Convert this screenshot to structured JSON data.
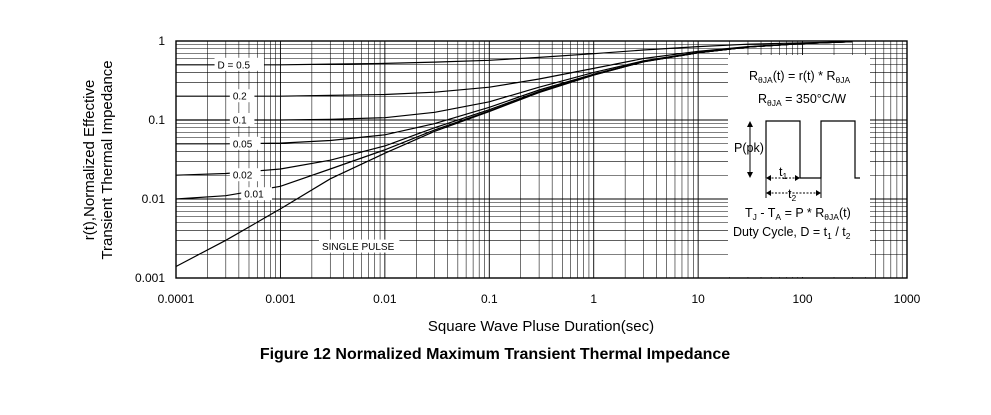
{
  "figure_caption": "Figure 12 Normalized Maximum Transient Thermal Impedance",
  "chart_data": {
    "type": "line",
    "xscale": "log",
    "yscale": "log",
    "xlim": [
      0.0001,
      1000
    ],
    "ylim": [
      0.001,
      1
    ],
    "grid": true,
    "xlabel": "Square Wave Pluse Duration(sec)",
    "ylabel_line1": "r(t),Normalized Effective",
    "ylabel_line2": "Transient Thermal Impedance",
    "x_ticks": [
      {
        "value": 0.0001,
        "label": "0.0001"
      },
      {
        "value": 0.001,
        "label": "0.001"
      },
      {
        "value": 0.01,
        "label": "0.01"
      },
      {
        "value": 0.1,
        "label": "0.1"
      },
      {
        "value": 1,
        "label": "1"
      },
      {
        "value": 10,
        "label": "10"
      },
      {
        "value": 100,
        "label": "100"
      },
      {
        "value": 1000,
        "label": "1000"
      }
    ],
    "y_ticks": [
      {
        "value": 0.001,
        "label": "0.001"
      },
      {
        "value": 0.01,
        "label": "0.01"
      },
      {
        "value": 0.1,
        "label": "0.1"
      },
      {
        "value": 1,
        "label": "1"
      }
    ],
    "x": [
      0.0001,
      0.0003,
      0.001,
      0.003,
      0.01,
      0.03,
      0.1,
      0.3,
      1,
      3,
      10,
      30,
      100,
      300
    ],
    "series": [
      {
        "name": "D = 0.5",
        "label_x": 0.00025,
        "label_y": 0.5,
        "values": [
          0.5,
          0.5,
          0.5,
          0.51,
          0.52,
          0.54,
          0.57,
          0.62,
          0.69,
          0.77,
          0.85,
          0.91,
          0.95,
          0.98
        ]
      },
      {
        "name": "0.2",
        "label_x": 0.00035,
        "label_y": 0.2,
        "values": [
          0.2,
          0.2,
          0.2,
          0.205,
          0.21,
          0.225,
          0.26,
          0.33,
          0.45,
          0.6,
          0.74,
          0.85,
          0.93,
          0.98
        ]
      },
      {
        "name": "0.1",
        "label_x": 0.00035,
        "label_y": 0.1,
        "values": [
          0.1,
          0.1,
          0.1,
          0.102,
          0.107,
          0.125,
          0.17,
          0.26,
          0.4,
          0.56,
          0.72,
          0.84,
          0.93,
          0.98
        ]
      },
      {
        "name": "0.05",
        "label_x": 0.00035,
        "label_y": 0.05,
        "values": [
          0.05,
          0.05,
          0.051,
          0.055,
          0.065,
          0.09,
          0.145,
          0.24,
          0.38,
          0.55,
          0.71,
          0.84,
          0.93,
          0.98
        ]
      },
      {
        "name": "0.02",
        "label_x": 0.00035,
        "label_y": 0.02,
        "values": [
          0.02,
          0.021,
          0.024,
          0.031,
          0.047,
          0.08,
          0.135,
          0.23,
          0.375,
          0.55,
          0.71,
          0.84,
          0.93,
          0.98
        ]
      },
      {
        "name": "0.01",
        "label_x": 0.00045,
        "label_y": 0.0115,
        "values": [
          0.01,
          0.011,
          0.0145,
          0.024,
          0.042,
          0.075,
          0.13,
          0.225,
          0.37,
          0.545,
          0.71,
          0.84,
          0.93,
          0.98
        ]
      },
      {
        "name": "SINGLE PULSE",
        "label_x": 0.0025,
        "label_y": 0.0025,
        "values": [
          0.0014,
          0.003,
          0.0075,
          0.018,
          0.038,
          0.072,
          0.128,
          0.222,
          0.37,
          0.545,
          0.71,
          0.84,
          0.93,
          0.98
        ]
      }
    ],
    "annotation_box": {
      "eq1": {
        "r": "R",
        "sub_r": "θJA",
        "rest": "(t) = r(t) * R",
        "sub_end": "θJA"
      },
      "eq2": {
        "r": "R",
        "sub_r": "θJA",
        "rest": " = 350°C/W"
      },
      "ppk": "P(pk)",
      "t1": "t",
      "t1_sub": "1",
      "t2": "t",
      "t2_sub": "2",
      "eq3": {
        "a": "T",
        "a_sub": "J",
        "b": " - T",
        "b_sub": "A",
        "c": " = P * R",
        "c_sub": "θJA",
        "d": "(t)"
      },
      "eq4": {
        "a": "Duty Cycle, D = t",
        "a_sub": "1",
        "b": " / t",
        "b_sub": "2"
      }
    }
  }
}
